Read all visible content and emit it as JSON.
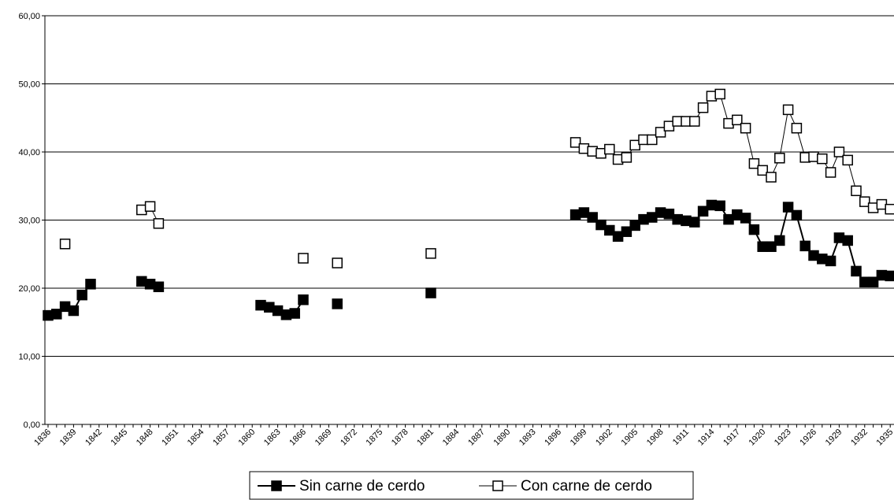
{
  "chart_data": {
    "type": "line",
    "categories": [
      "1836",
      null,
      null,
      "1839",
      null,
      null,
      "1842",
      null,
      null,
      "1845",
      null,
      null,
      "1848",
      null,
      null,
      "1851",
      null,
      null,
      "1854",
      null,
      null,
      "1857",
      null,
      null,
      "1860",
      null,
      null,
      "1863",
      null,
      null,
      "1866",
      null,
      null,
      "1869",
      null,
      null,
      "1872",
      null,
      null,
      "1875",
      null,
      null,
      "1878",
      null,
      null,
      "1881",
      null,
      null,
      "1884",
      null,
      null,
      "1887",
      null,
      null,
      "1890",
      null,
      null,
      "1893",
      null,
      null,
      "1896",
      null,
      null,
      "1899",
      null,
      null,
      "1902",
      null,
      null,
      "1905",
      null,
      null,
      "1908",
      null,
      null,
      "1911",
      null,
      null,
      "1914",
      null,
      null,
      "1917",
      null,
      null,
      "1920",
      null,
      null,
      "1923",
      null,
      null,
      "1926",
      null,
      null,
      "1929",
      null,
      null,
      "1932",
      null,
      null,
      "1935"
    ],
    "series": [
      {
        "name": "Sin carne de cerdo",
        "color": "#000000",
        "values": [
          16.0,
          16.2,
          17.3,
          16.7,
          19.0,
          20.6,
          null,
          null,
          null,
          null,
          null,
          21.0,
          20.6,
          20.2,
          null,
          null,
          null,
          null,
          null,
          null,
          null,
          null,
          null,
          null,
          null,
          17.5,
          17.2,
          16.7,
          16.1,
          16.3,
          18.3,
          null,
          null,
          null,
          17.7,
          null,
          null,
          null,
          null,
          null,
          null,
          null,
          null,
          null,
          null,
          19.3,
          null,
          null,
          null,
          null,
          null,
          null,
          null,
          null,
          null,
          null,
          null,
          null,
          null,
          null,
          null,
          null,
          30.8,
          31.1,
          30.4,
          29.3,
          28.5,
          27.6,
          28.3,
          29.2,
          30.1,
          30.4,
          31.1,
          30.9,
          30.1,
          29.9,
          29.7,
          31.3,
          32.2,
          32.1,
          30.1,
          30.8,
          30.3,
          28.6,
          26.1,
          26.1,
          27.0,
          31.9,
          30.7,
          26.2,
          24.8,
          24.3,
          24.0,
          27.4,
          27.0,
          22.5,
          20.9,
          20.9,
          21.9,
          21.8
        ]
      },
      {
        "name": "Con carne de cerdo",
        "color": "#ffffff",
        "values": [
          null,
          null,
          26.5,
          null,
          null,
          null,
          null,
          null,
          null,
          null,
          null,
          31.5,
          32.0,
          29.5,
          null,
          null,
          null,
          null,
          null,
          null,
          null,
          null,
          null,
          null,
          null,
          null,
          null,
          null,
          null,
          null,
          24.4,
          null,
          null,
          null,
          23.7,
          null,
          null,
          null,
          null,
          null,
          null,
          null,
          null,
          null,
          null,
          25.1,
          null,
          null,
          null,
          null,
          null,
          null,
          null,
          null,
          null,
          null,
          null,
          null,
          null,
          null,
          null,
          null,
          41.4,
          40.5,
          40.1,
          39.8,
          40.4,
          38.9,
          39.2,
          41.0,
          41.8,
          41.8,
          42.9,
          43.8,
          44.5,
          44.5,
          44.5,
          46.5,
          48.2,
          48.5,
          44.2,
          44.7,
          43.5,
          38.3,
          37.3,
          36.3,
          39.1,
          46.2,
          43.5,
          39.2,
          39.3,
          39.0,
          37.0,
          40.0,
          38.8,
          34.3,
          32.7,
          31.8,
          32.3,
          31.6
        ]
      }
    ],
    "ylim": [
      0,
      60
    ],
    "yticks": [
      {
        "value": 0,
        "label": "0,00"
      },
      {
        "value": 10,
        "label": "10,00"
      },
      {
        "value": 20,
        "label": "20,00"
      },
      {
        "value": 30,
        "label": "30,00"
      },
      {
        "value": 40,
        "label": "40,00"
      },
      {
        "value": 50,
        "label": "50,00"
      },
      {
        "value": 60,
        "label": "60,00"
      }
    ],
    "grid": true,
    "legend": "bottom"
  }
}
